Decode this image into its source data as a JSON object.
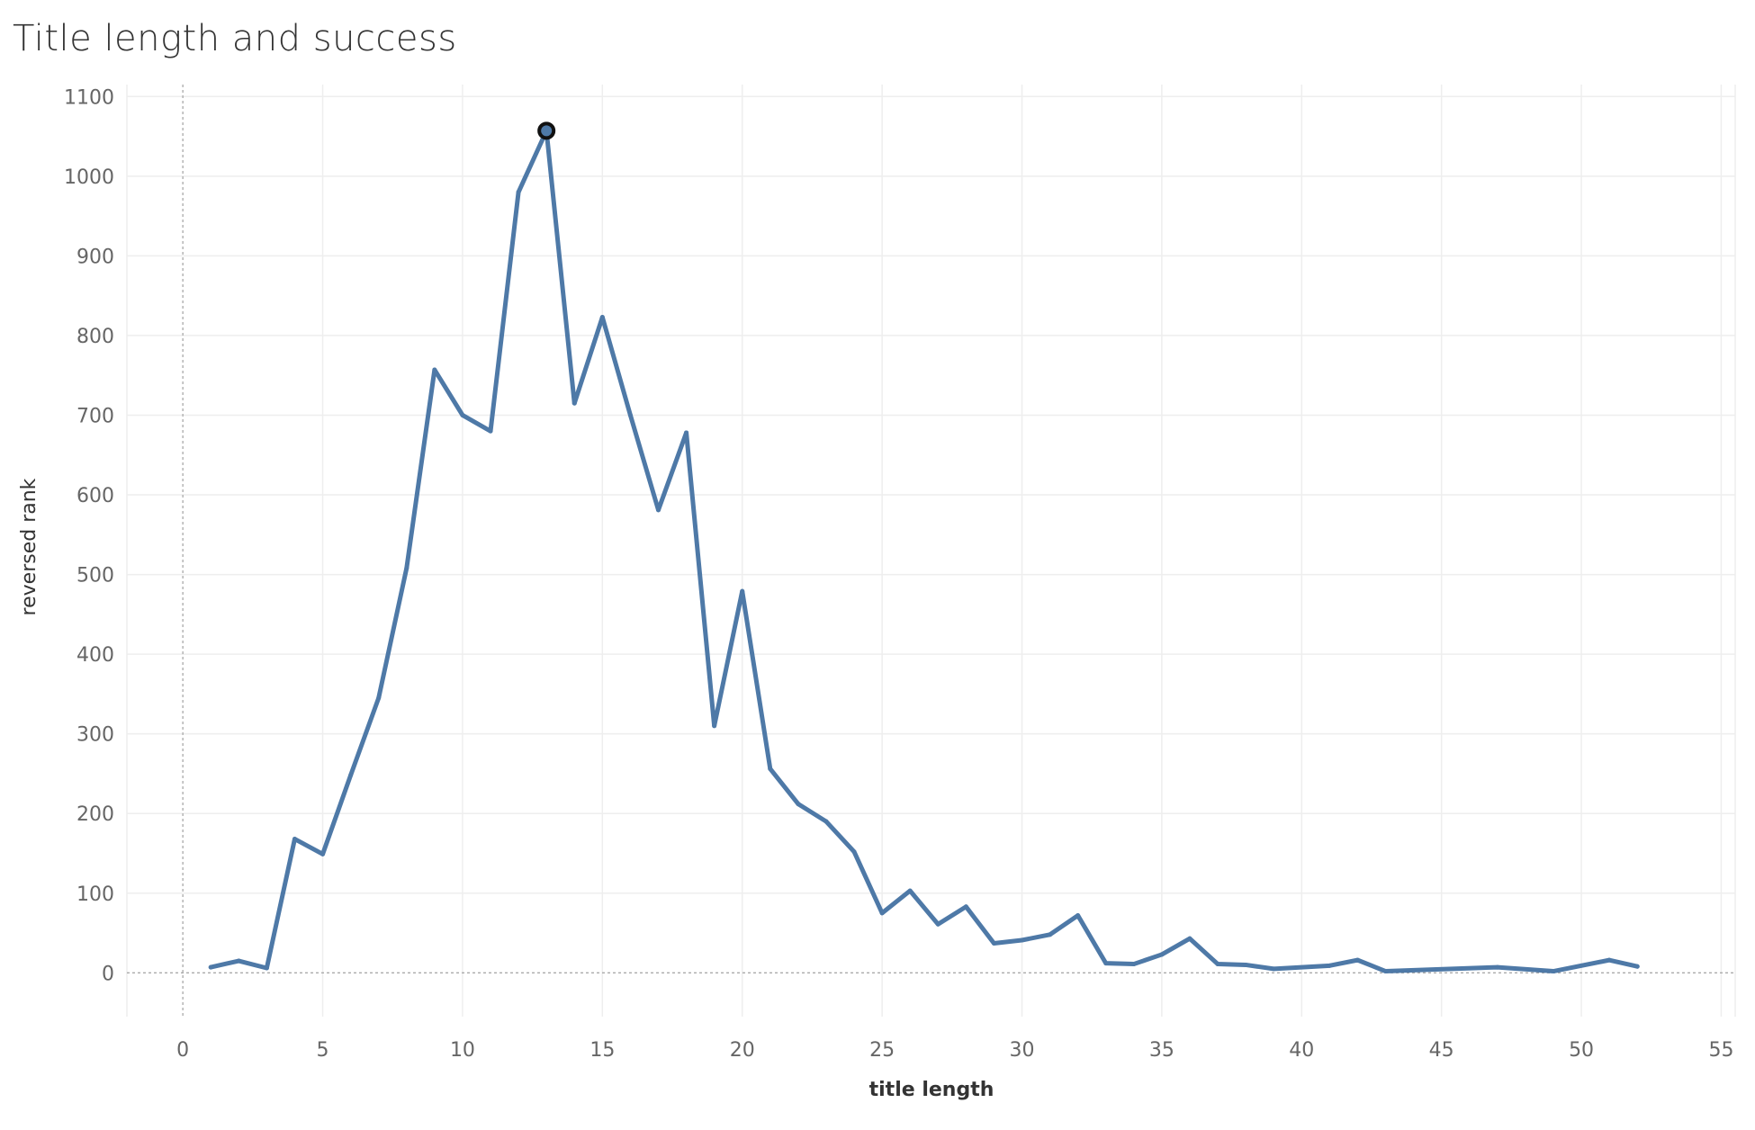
{
  "chart_data": {
    "type": "line",
    "title": "Title length and success",
    "xlabel": "title length",
    "ylabel": "reversed rank",
    "xlim": [
      -2,
      55.5
    ],
    "ylim": [
      -55,
      1115
    ],
    "x_ticks": [
      0,
      5,
      10,
      15,
      20,
      25,
      30,
      35,
      40,
      45,
      50,
      55
    ],
    "y_ticks": [
      0,
      100,
      200,
      300,
      400,
      500,
      600,
      700,
      800,
      900,
      1000,
      1100
    ],
    "grid": true,
    "line_color": "#4e79a7",
    "highlight_point": {
      "x": 13,
      "y": 1057
    },
    "series": [
      {
        "x": [
          1,
          2,
          3,
          4,
          5,
          6,
          7,
          8,
          9,
          10,
          11,
          12,
          13,
          14,
          15,
          16,
          17,
          18,
          19,
          20,
          21,
          22,
          23,
          24,
          25,
          26,
          27,
          28,
          29,
          30,
          31,
          32,
          33,
          34,
          35,
          36,
          37,
          38,
          39,
          41,
          42,
          43,
          47,
          49,
          51,
          52
        ],
        "y": [
          7,
          15,
          6,
          168,
          149,
          248,
          345,
          508,
          757,
          700,
          680,
          980,
          1057,
          715,
          823,
          700,
          581,
          678,
          310,
          479,
          256,
          212,
          190,
          152,
          75,
          103,
          61,
          83,
          37,
          41,
          48,
          72,
          12,
          11,
          23,
          43,
          11,
          10,
          5,
          9,
          16,
          2,
          7,
          2,
          16,
          8
        ]
      }
    ]
  }
}
